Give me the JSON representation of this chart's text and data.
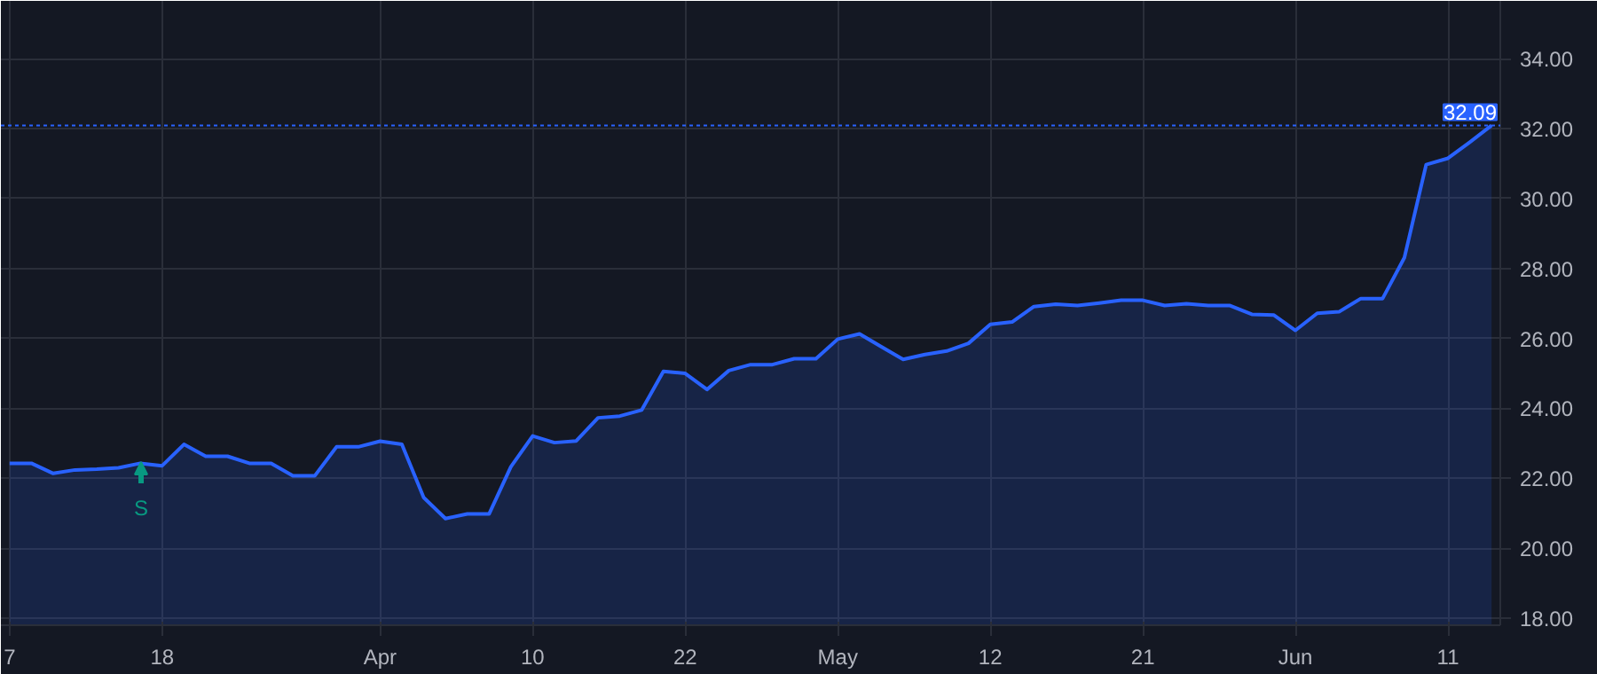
{
  "chart_data": {
    "type": "area",
    "categories": [
      "7",
      null,
      null,
      null,
      null,
      null,
      null,
      "18",
      null,
      null,
      null,
      null,
      null,
      null,
      null,
      null,
      null,
      "Apr",
      null,
      null,
      null,
      null,
      null,
      null,
      "10",
      null,
      null,
      null,
      null,
      null,
      null,
      "22",
      null,
      null,
      null,
      null,
      null,
      null,
      "May",
      null,
      null,
      null,
      null,
      null,
      null,
      "12",
      null,
      null,
      null,
      null,
      null,
      null,
      "21",
      null,
      null,
      null,
      null,
      null,
      null,
      "Jun",
      null,
      null,
      null,
      null,
      null,
      null,
      "11",
      null,
      null
    ],
    "series": [
      {
        "color": "#2962ff",
        "values": [
          22.43,
          22.43,
          22.14,
          22.24,
          22.26,
          22.3,
          22.43,
          22.36,
          22.97,
          22.63,
          22.63,
          22.43,
          22.43,
          22.07,
          22.07,
          22.9,
          22.9,
          23.06,
          22.97,
          21.45,
          20.85,
          20.98,
          20.98,
          22.33,
          23.21,
          23.02,
          23.07,
          23.73,
          23.78,
          23.95,
          25.06,
          25.0,
          24.54,
          25.08,
          25.25,
          25.25,
          25.42,
          25.42,
          25.98,
          26.13,
          25.76,
          25.4,
          25.54,
          25.64,
          25.86,
          26.4,
          26.47,
          26.91,
          26.98,
          26.94,
          27.01,
          27.09,
          27.09,
          26.94,
          26.99,
          26.94,
          26.94,
          26.69,
          26.67,
          26.23,
          26.72,
          26.76,
          27.14,
          27.14,
          28.31,
          30.97,
          31.15,
          31.61,
          32.09
        ]
      }
    ],
    "ylim": [
      17.8,
      35.65
    ],
    "yticks": [
      {
        "value": 18,
        "label": "18.00"
      },
      {
        "value": 20,
        "label": "20.00"
      },
      {
        "value": 22,
        "label": "22.00"
      },
      {
        "value": 24,
        "label": "24.00"
      },
      {
        "value": 26,
        "label": "26.00"
      },
      {
        "value": 28,
        "label": "28.00"
      },
      {
        "value": 30,
        "label": "30.00"
      },
      {
        "value": 32,
        "label": "32.00"
      },
      {
        "value": 34,
        "label": "34.00"
      }
    ],
    "ref_lines": [
      {
        "axis": "y",
        "value": 32.09,
        "label": "32.09",
        "color": "#2962ff",
        "line_style": "dotted"
      }
    ],
    "annotations": [
      "S"
    ],
    "grid": true
  }
}
